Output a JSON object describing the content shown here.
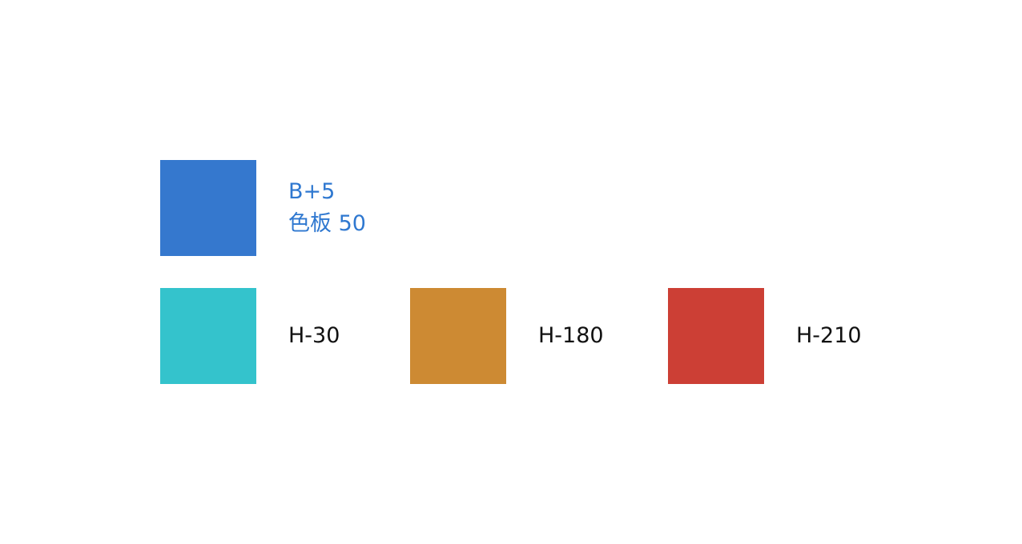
{
  "primary": {
    "name": "B+5",
    "palette_label": "色板 50",
    "color": "#3578CE",
    "label_color": "#2F78D0"
  },
  "variants": [
    {
      "label": "H-30",
      "color": "#34C3CC"
    },
    {
      "label": "H-180",
      "color": "#CD8A33"
    },
    {
      "label": "H-210",
      "color": "#CC3F35"
    }
  ]
}
